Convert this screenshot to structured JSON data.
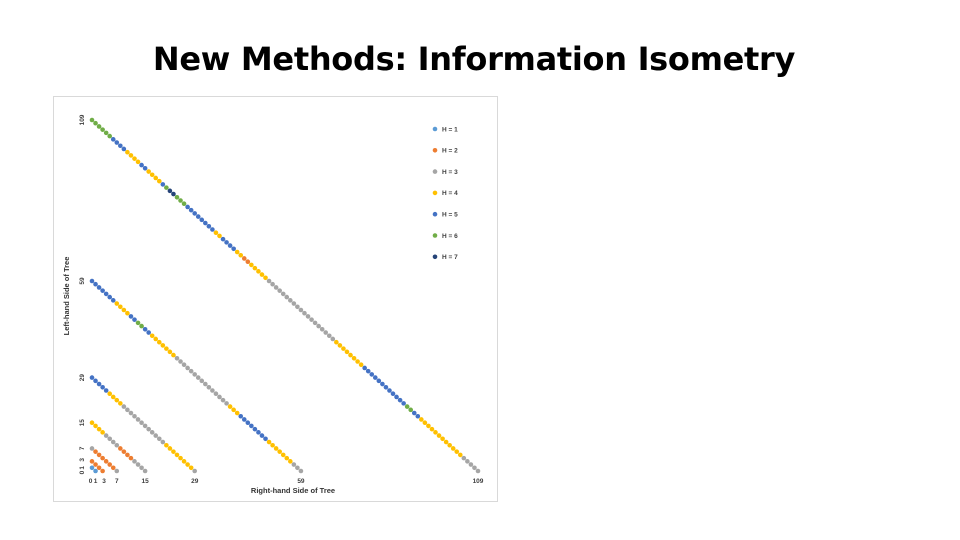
{
  "slide": {
    "title": "New Methods: Information Isometry"
  },
  "colors": {
    "H1": "#5b9bd5",
    "H2": "#ed7d31",
    "H3": "#a5a5a5",
    "H4": "#ffc000",
    "H5": "#4472c4",
    "H6": "#70ad47",
    "H7": "#264478"
  },
  "chart_data": {
    "type": "scatter",
    "xlabel": "Right-hand Side of Tree",
    "ylabel": "Left-hand Side of Tree",
    "xlim": [
      0,
      109
    ],
    "ylim": [
      0,
      109
    ],
    "x_ticks": [
      "0",
      "1",
      "3",
      "7",
      "15",
      "29",
      "59",
      "109"
    ],
    "y_ticks": [
      "0",
      "1",
      "3",
      "7",
      "15",
      "29",
      "59",
      "109"
    ],
    "grid": false,
    "legend_position": "top-right",
    "legend": [
      "H = 1",
      "H = 2",
      "H = 3",
      "H = 4",
      "H = 5",
      "H = 6",
      "H = 7"
    ],
    "diagonals": [
      {
        "total": 1,
        "heights": [
          1,
          1
        ]
      },
      {
        "total": 3,
        "heights": [
          2,
          2,
          2,
          2
        ]
      },
      {
        "total": 7,
        "heights": [
          3,
          2,
          2,
          2,
          2,
          2,
          2,
          3
        ]
      },
      {
        "total": 15,
        "heights": [
          3,
          3,
          3,
          3,
          2,
          2,
          2,
          2,
          3,
          3,
          3,
          3,
          4,
          4,
          4,
          4
        ]
      },
      {
        "total": 29,
        "heights": [
          3,
          4,
          4,
          4,
          4,
          4,
          4,
          4,
          4,
          3,
          3,
          3,
          3,
          3,
          3,
          3,
          3,
          3,
          3,
          3,
          3,
          4,
          4,
          4,
          4,
          5,
          5,
          5,
          5,
          5
        ]
      },
      {
        "total": 59,
        "heights": [
          3,
          3,
          3,
          4,
          4,
          4,
          4,
          4,
          4,
          4,
          5,
          5,
          5,
          5,
          5,
          5,
          5,
          5,
          4,
          4,
          4,
          3,
          3,
          3,
          3,
          3,
          3,
          3,
          3,
          3,
          3,
          3,
          3,
          3,
          3,
          3,
          4,
          4,
          4,
          4,
          4,
          4,
          4,
          5,
          5,
          6,
          6,
          5,
          5,
          4,
          4,
          4,
          4,
          5,
          5,
          5,
          5,
          5,
          5,
          5
        ]
      },
      {
        "total": 109,
        "heights": [
          3,
          3,
          3,
          3,
          3,
          4,
          4,
          4,
          4,
          4,
          4,
          4,
          4,
          4,
          4,
          4,
          4,
          5,
          5,
          6,
          6,
          5,
          5,
          5,
          5,
          5,
          5,
          5,
          5,
          5,
          5,
          5,
          5,
          4,
          4,
          4,
          4,
          4,
          4,
          4,
          4,
          3,
          3,
          3,
          3,
          3,
          3,
          3,
          3,
          3,
          3,
          3,
          3,
          3,
          3,
          3,
          3,
          3,
          3,
          3,
          4,
          4,
          4,
          4,
          4,
          2,
          2,
          4,
          4,
          5,
          5,
          5,
          5,
          4,
          4,
          5,
          5,
          5,
          5,
          5,
          5,
          5,
          5,
          6,
          6,
          6,
          7,
          7,
          6,
          5,
          4,
          4,
          4,
          4,
          5,
          5,
          4,
          4,
          4,
          4,
          5,
          5,
          5,
          5,
          6,
          6,
          6,
          6,
          6,
          6
        ]
      }
    ]
  }
}
